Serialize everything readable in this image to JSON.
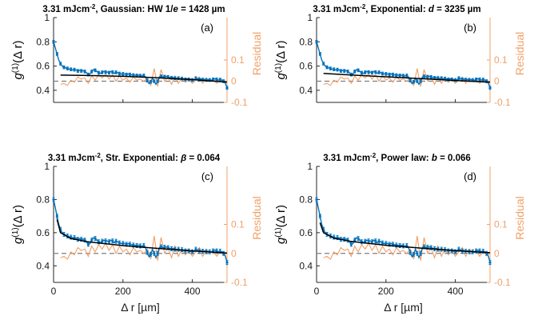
{
  "chart_data": [
    {
      "type": "line",
      "title_parts": [
        "3.31 mJcm",
        "-2",
        ", Gaussian: HW 1/",
        "e",
        " = 1428 µm"
      ],
      "panel_label": "(a)",
      "ylabel_parts": [
        "g",
        "(1)",
        "(Δ r)"
      ],
      "right_ylabel": "Residual",
      "xlabel": "",
      "xlim": [
        0,
        500
      ],
      "ylim": [
        0.3,
        1.0
      ],
      "right_ylim": [
        -0.1,
        0.3
      ],
      "xticks": [
        "0",
        "200",
        "400"
      ],
      "yticks": [
        "0.4",
        "0.6",
        "0.8",
        "1"
      ],
      "right_yticks": [
        "-0.1",
        "0",
        "0.1"
      ],
      "fit_curve": {
        "x": [
          20,
          100,
          200,
          300,
          400,
          500
        ],
        "y": [
          0.525,
          0.522,
          0.515,
          0.503,
          0.488,
          0.468
        ]
      },
      "colors": {
        "data": "#0072bd",
        "fit": "#000000",
        "residual": "#f0a068"
      }
    },
    {
      "type": "line",
      "title_parts": [
        "3.31 mJcm",
        "-2",
        ", Exponential: ",
        "d",
        "  = 3235 µm"
      ],
      "panel_label": "(b)",
      "ylabel_parts": [
        "g",
        "(1)",
        "(Δ r)"
      ],
      "right_ylabel": "Residual",
      "xlabel": "",
      "xlim": [
        0,
        500
      ],
      "ylim": [
        0.3,
        1.0
      ],
      "right_ylim": [
        -0.1,
        0.3
      ],
      "xticks": [
        "0",
        "200",
        "400"
      ],
      "yticks": [
        "0.4",
        "0.6",
        "0.8",
        "1"
      ],
      "right_yticks": [
        "-0.1",
        "0",
        "0.1"
      ],
      "fit_curve": {
        "x": [
          20,
          100,
          200,
          300,
          400,
          500
        ],
        "y": [
          0.54,
          0.526,
          0.511,
          0.496,
          0.481,
          0.467
        ]
      },
      "colors": {
        "data": "#0072bd",
        "fit": "#000000",
        "residual": "#f0a068"
      }
    },
    {
      "type": "line",
      "title_parts": [
        "3.31 mJcm",
        "-2",
        ", Str. Exponential: ",
        "β",
        " = 0.064"
      ],
      "panel_label": "(c)",
      "ylabel_parts": [
        "g",
        "(1)",
        "(Δ r)"
      ],
      "right_ylabel": "Residual",
      "xlabel": "",
      "xlim": [
        0,
        500
      ],
      "ylim": [
        0.3,
        1.0
      ],
      "right_ylim": [
        -0.1,
        0.3
      ],
      "xticks": [
        "0",
        "200",
        "400"
      ],
      "yticks": [
        "0.4",
        "0.6",
        "0.8",
        "1"
      ],
      "right_yticks": [
        "-0.1",
        "0",
        "0.1"
      ],
      "fit_curve": {
        "x": [
          10,
          20,
          50,
          100,
          200,
          300,
          400,
          500
        ],
        "y": [
          0.68,
          0.6,
          0.565,
          0.545,
          0.522,
          0.505,
          0.49,
          0.477
        ]
      },
      "colors": {
        "data": "#0072bd",
        "fit": "#000000",
        "residual": "#f0a068"
      }
    },
    {
      "type": "line",
      "title_parts": [
        "3.31 mJcm",
        "-2",
        ", Power law: ",
        "b",
        "  = 0.066"
      ],
      "panel_label": "(d)",
      "ylabel_parts": [
        "g",
        "(1)",
        "(Δ r)"
      ],
      "right_ylabel": "Residual",
      "xlabel": "",
      "xlim": [
        0,
        500
      ],
      "ylim": [
        0.3,
        1.0
      ],
      "right_ylim": [
        -0.1,
        0.3
      ],
      "xticks": [
        "0",
        "200",
        "400"
      ],
      "yticks": [
        "0.4",
        "0.6",
        "0.8",
        "1"
      ],
      "right_yticks": [
        "-0.1",
        "0",
        "0.1"
      ],
      "fit_curve": {
        "x": [
          10,
          20,
          50,
          100,
          200,
          300,
          400,
          500
        ],
        "y": [
          0.66,
          0.6,
          0.567,
          0.547,
          0.524,
          0.507,
          0.492,
          0.479
        ]
      },
      "colors": {
        "data": "#0072bd",
        "fit": "#000000",
        "residual": "#f0a068"
      }
    }
  ],
  "shared_data": {
    "x": [
      0,
      5,
      10,
      15,
      20,
      25,
      30,
      35,
      40,
      45,
      50,
      55,
      60,
      65,
      70,
      75,
      80,
      85,
      90,
      95,
      100,
      105,
      110,
      115,
      120,
      125,
      130,
      135,
      140,
      145,
      150,
      155,
      160,
      165,
      170,
      175,
      180,
      185,
      190,
      195,
      200,
      205,
      210,
      215,
      220,
      225,
      230,
      235,
      240,
      245,
      250,
      255,
      260,
      265,
      270,
      275,
      280,
      285,
      290,
      295,
      300,
      305,
      310,
      315,
      320,
      325,
      330,
      335,
      340,
      345,
      350,
      355,
      360,
      365,
      370,
      375,
      380,
      385,
      390,
      395,
      400,
      405,
      410,
      415,
      420,
      425,
      430,
      435,
      440,
      445,
      450,
      455,
      460,
      465,
      470,
      475,
      480,
      485,
      490,
      495,
      500
    ],
    "y": [
      0.8,
      0.75,
      0.7,
      0.65,
      0.62,
      0.6,
      0.59,
      0.585,
      0.58,
      0.575,
      0.573,
      0.568,
      0.57,
      0.568,
      0.56,
      0.565,
      0.56,
      0.562,
      0.555,
      0.545,
      0.53,
      0.535,
      0.555,
      0.57,
      0.565,
      0.555,
      0.545,
      0.54,
      0.548,
      0.555,
      0.55,
      0.55,
      0.545,
      0.555,
      0.55,
      0.54,
      0.548,
      0.545,
      0.538,
      0.535,
      0.535,
      0.535,
      0.53,
      0.535,
      0.53,
      0.528,
      0.525,
      0.525,
      0.522,
      0.525,
      0.52,
      0.518,
      0.522,
      0.51,
      0.48,
      0.455,
      0.47,
      0.5,
      0.475,
      0.45,
      0.475,
      0.51,
      0.515,
      0.51,
      0.512,
      0.515,
      0.51,
      0.505,
      0.503,
      0.505,
      0.5,
      0.498,
      0.5,
      0.495,
      0.497,
      0.495,
      0.49,
      0.495,
      0.49,
      0.488,
      0.485,
      0.487,
      0.5,
      0.495,
      0.49,
      0.492,
      0.488,
      0.49,
      0.485,
      0.488,
      0.485,
      0.483,
      0.49,
      0.495,
      0.49,
      0.485,
      0.488,
      0.485,
      0.475,
      0.46,
      0.42
    ],
    "yerr": 0.012,
    "residual_x": [
      20,
      30,
      40,
      50,
      60,
      70,
      80,
      90,
      100,
      110,
      120,
      130,
      140,
      150,
      160,
      170,
      180,
      190,
      200,
      210,
      220,
      230,
      240,
      250,
      260,
      270,
      280,
      290,
      300,
      310,
      320,
      330,
      340,
      350,
      360,
      370,
      380,
      390,
      400,
      410,
      420,
      430,
      440,
      450,
      460,
      470,
      480,
      490,
      500
    ],
    "residual_y": [
      -0.015,
      -0.01,
      -0.02,
      0.005,
      -0.005,
      0.02,
      0.01,
      0.015,
      -0.01,
      0.025,
      0.005,
      0.03,
      0.015,
      0.035,
      0.01,
      0.03,
      0.0,
      0.025,
      0.005,
      0.015,
      -0.005,
      0.02,
      0.005,
      0.01,
      0.0,
      0.015,
      -0.02,
      0.06,
      -0.025,
      0.055,
      0.0,
      0.02,
      -0.015,
      0.025,
      -0.01,
      0.015,
      -0.005,
      0.01,
      -0.01,
      0.005,
      0.02,
      -0.01,
      0.015,
      0.0,
      0.01,
      -0.01,
      0.005,
      -0.005,
      0.0
    ]
  },
  "shared_xlabel": "Δ r [µm]"
}
